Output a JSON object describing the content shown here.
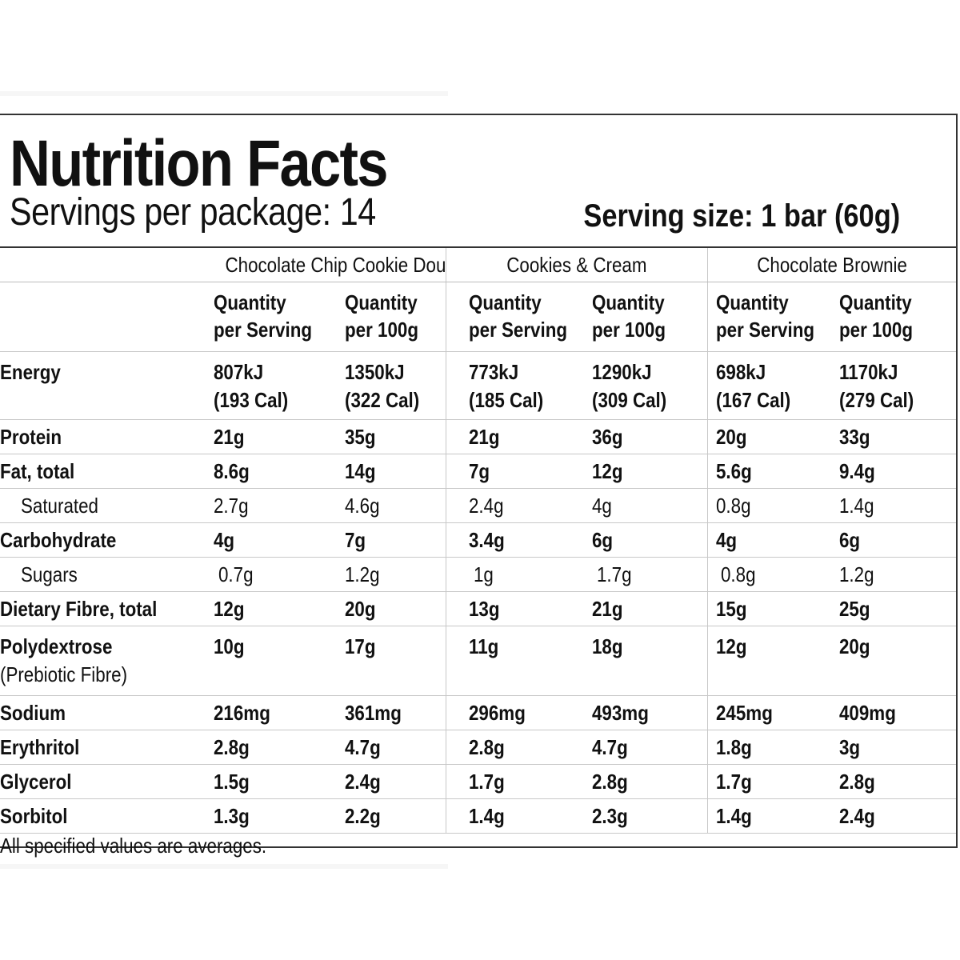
{
  "header": {
    "title": "Nutrition Facts",
    "servings": "Servings per package: 14",
    "serving_size": "Serving size: 1 bar (60g)"
  },
  "flavors": [
    "Chocolate Chip Cookie Dough",
    "Cookies & Cream",
    "Chocolate Brownie"
  ],
  "subheads": {
    "per_serving_1": "Quantity",
    "per_serving_2": "per Serving",
    "per_100g_1": "Quantity",
    "per_100g_2": "per 100g"
  },
  "rows": [
    {
      "name": "Energy",
      "bold": true,
      "values": [
        [
          "807kJ",
          "(193 Cal)"
        ],
        [
          "1350kJ",
          "(322 Cal)"
        ],
        [
          "773kJ",
          "(185 Cal)"
        ],
        [
          "1290kJ",
          "(309 Cal)"
        ],
        [
          "698kJ",
          "(167 Cal)"
        ],
        [
          "1170kJ",
          "(279 Cal)"
        ]
      ]
    },
    {
      "name": "Protein",
      "bold": true,
      "values": [
        "21g",
        "35g",
        "21g",
        "36g",
        "20g",
        "33g"
      ]
    },
    {
      "name": "Fat, total",
      "bold": true,
      "values": [
        "8.6g",
        "14g",
        "7g",
        "12g",
        "5.6g",
        "9.4g"
      ]
    },
    {
      "name": "Saturated",
      "bold": false,
      "values": [
        "2.7g",
        "4.6g",
        "2.4g",
        "4g",
        "0.8g",
        "1.4g"
      ]
    },
    {
      "name": "Carbohydrate",
      "bold": true,
      "values": [
        "4g",
        "7g",
        "3.4g",
        "6g",
        "4g",
        "6g"
      ]
    },
    {
      "name": "Sugars",
      "bold": false,
      "values": [
        "0.7g",
        "1.2g",
        "1g",
        "1.7g",
        "0.8g",
        "1.2g"
      ]
    },
    {
      "name": "Dietary Fibre, total",
      "bold": true,
      "values": [
        "12g",
        "20g",
        "13g",
        "21g",
        "15g",
        "25g"
      ]
    },
    {
      "name": "Polydextrose",
      "note": "(Prebiotic Fibre)",
      "bold": true,
      "values": [
        "10g",
        "17g",
        "11g",
        "18g",
        "12g",
        "20g"
      ]
    },
    {
      "name": "Sodium",
      "bold": true,
      "values": [
        "216mg",
        "361mg",
        "296mg",
        "493mg",
        "245mg",
        "409mg"
      ]
    },
    {
      "name": "Erythritol",
      "bold": true,
      "values": [
        "2.8g",
        "4.7g",
        "2.8g",
        "4.7g",
        "1.8g",
        "3g"
      ]
    },
    {
      "name": "Glycerol",
      "bold": true,
      "values": [
        "1.5g",
        "2.4g",
        "1.7g",
        "2.8g",
        "1.7g",
        "2.8g"
      ]
    },
    {
      "name": "Sorbitol",
      "bold": true,
      "values": [
        "1.3g",
        "2.2g",
        "1.4g",
        "2.3g",
        "1.4g",
        "2.4g"
      ]
    }
  ],
  "footnote": "All specified values are averages."
}
